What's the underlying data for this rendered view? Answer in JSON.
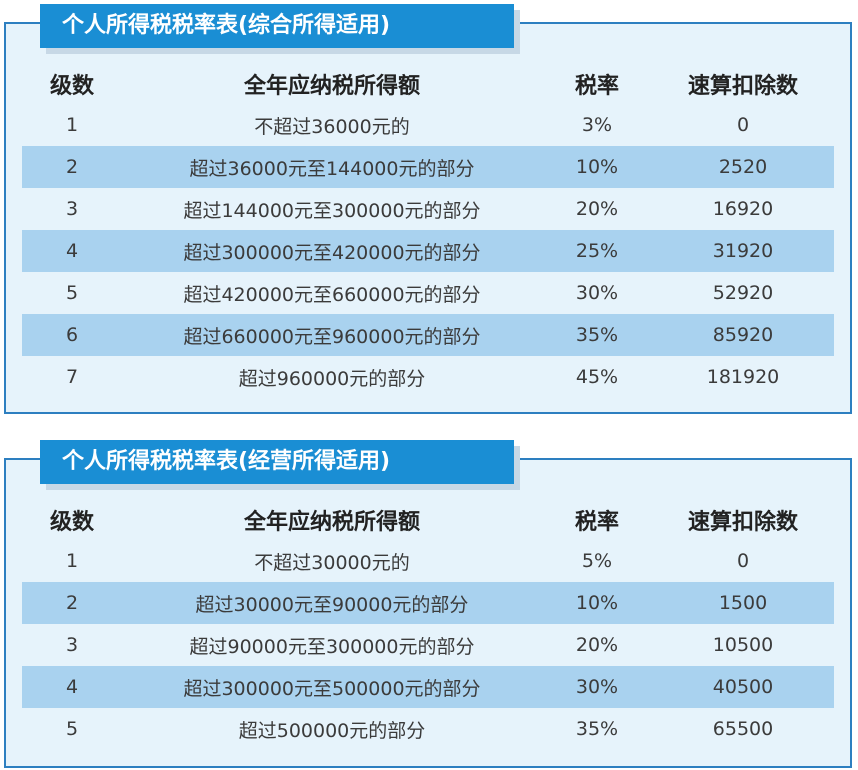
{
  "tables": [
    {
      "title": "个人所得税税率表(综合所得适用)",
      "headers": [
        "级数",
        "全年应纳税所得额",
        "税率",
        "速算扣除数"
      ],
      "rows": [
        [
          "1",
          "不超过36000元的",
          "3%",
          "0"
        ],
        [
          "2",
          "超过36000元至144000元的部分",
          "10%",
          "2520"
        ],
        [
          "3",
          "超过144000元至300000元的部分",
          "20%",
          "16920"
        ],
        [
          "4",
          "超过300000元至420000元的部分",
          "25%",
          "31920"
        ],
        [
          "5",
          "超过420000元至660000元的部分",
          "30%",
          "52920"
        ],
        [
          "6",
          "超过660000元至960000元的部分",
          "35%",
          "85920"
        ],
        [
          "7",
          "超过960000元的部分",
          "45%",
          "181920"
        ]
      ]
    },
    {
      "title": "个人所得税税率表(经营所得适用)",
      "headers": [
        "级数",
        "全年应纳税所得额",
        "税率",
        "速算扣除数"
      ],
      "rows": [
        [
          "1",
          "不超过30000元的",
          "5%",
          "0"
        ],
        [
          "2",
          "超过30000元至90000元的部分",
          "10%",
          "1500"
        ],
        [
          "3",
          "超过90000元至300000元的部分",
          "20%",
          "10500"
        ],
        [
          "4",
          "超过300000元至500000元的部分",
          "30%",
          "40500"
        ],
        [
          "5",
          "超过500000元的部分",
          "35%",
          "65500"
        ]
      ]
    }
  ],
  "colors": {
    "tab_blue": "#1a8ed4",
    "panel_border": "#2d7fc0",
    "panel_bg": "#e6f3fb",
    "row_stripe": "#a9d2ef"
  }
}
